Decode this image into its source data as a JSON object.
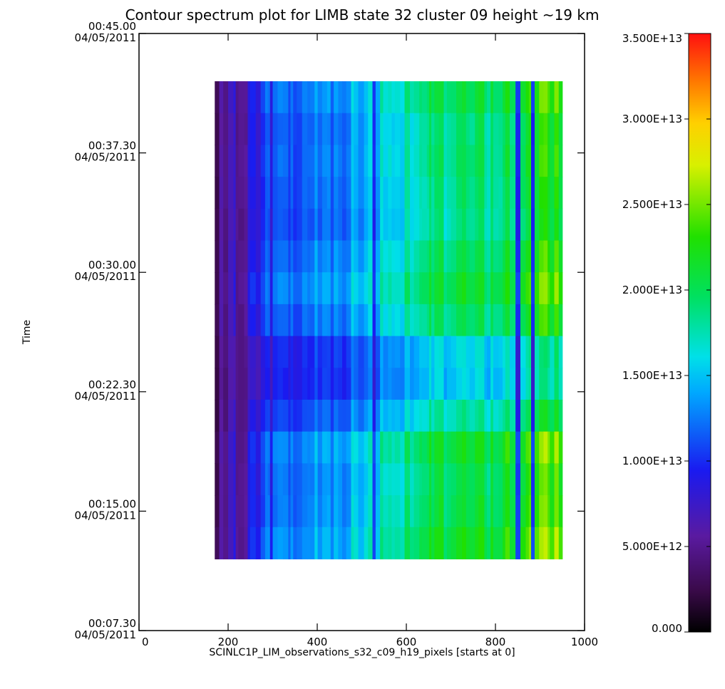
{
  "chart_data": {
    "type": "heatmap",
    "title": "Contour spectrum plot for LIMB state 32 cluster 09 height ~19 km",
    "xlabel": "SCINLC1P_LIM_observations_s32_c09_h19_pixels [starts at 0]",
    "ylabel": "Time",
    "xlim": [
      0,
      1000
    ],
    "x_ticks": [
      "0",
      "200",
      "400",
      "600",
      "800",
      "1000"
    ],
    "y_ticks": [
      {
        "time": "00:07.30",
        "date": "04/05/2011"
      },
      {
        "time": "00:15.00",
        "date": "04/05/2011"
      },
      {
        "time": "00:22.30",
        "date": "04/05/2011"
      },
      {
        "time": "00:30.00",
        "date": "04/05/2011"
      },
      {
        "time": "00:37.30",
        "date": "04/05/2011"
      },
      {
        "time": "00:45.00",
        "date": "04/05/2011"
      }
    ],
    "data_extent": {
      "x_start": 170,
      "x_end": 950,
      "time_start": "00:12.00",
      "time_end": "00:42.00"
    },
    "rows": 15,
    "colorbar": {
      "min": 0,
      "max": 35000000000000.0,
      "colormap": "rainbow (black-purple-blue-cyan-green-yellow-orange-red)",
      "labels": [
        "0.000",
        "5.000E+12",
        "1.000E+13",
        "1.500E+13",
        "2.000E+13",
        "2.500E+13",
        "3.000E+13",
        "3.500E+13"
      ]
    },
    "grid": false
  }
}
